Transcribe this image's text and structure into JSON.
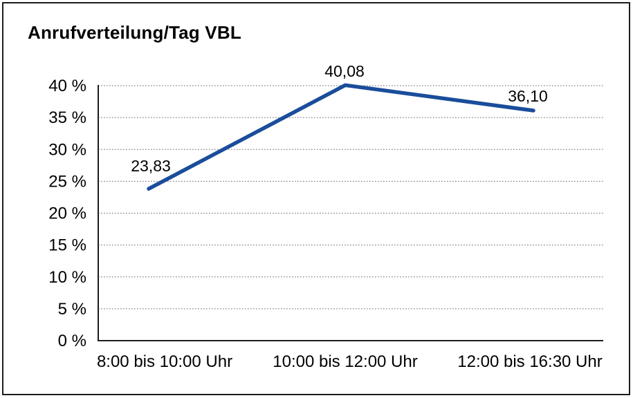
{
  "window": {
    "background_color": "#ffffff",
    "frame_border_color": "#1c1c1c"
  },
  "chart_data": {
    "type": "line",
    "title": "Anrufverteilung/Tag VBL",
    "categories": [
      "8:00 bis 10:00 Uhr",
      "10:00 bis 12:00 Uhr",
      "12:00 bis 16:30 Uhr"
    ],
    "values": [
      23.83,
      40.08,
      36.1
    ],
    "value_labels": [
      "23,83",
      "40,08",
      "36,10"
    ],
    "xlabel": "",
    "ylabel": "",
    "ylim": [
      0,
      40
    ],
    "ytick_interval": 5,
    "ytick_labels": [
      "0 %",
      "5 %",
      "10 %",
      "15 %",
      "20 %",
      "25 %",
      "30 %",
      "35 %",
      "40 %"
    ],
    "grid": "horizontal-dotted",
    "legend": "none",
    "line_color": "#1a4d9b",
    "axis_color": "#1c1c1c",
    "gridline_color": "#666666",
    "label_color": "#000000"
  }
}
